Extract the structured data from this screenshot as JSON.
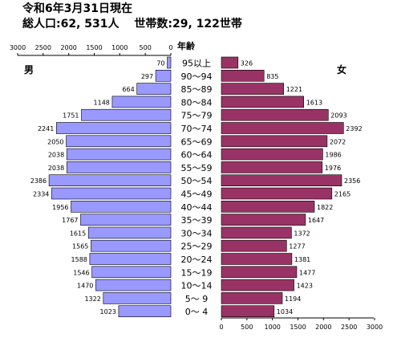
{
  "header": {
    "line1": "令和6年3月31日現在",
    "line2": "総人口:62, 531人　 世帯数:29, 122世帯"
  },
  "colors": {
    "male_bar": "#9999ff",
    "female_bar": "#993366",
    "bar_outline": "#000000"
  },
  "chart_data": {
    "type": "bar",
    "subtype": "population-pyramid",
    "categories": [
      "95以上",
      "90～94",
      "85～89",
      "80～84",
      "75～79",
      "70～74",
      "65～69",
      "60～64",
      "55～59",
      "50～54",
      "45～49",
      "40～44",
      "35～39",
      "30～34",
      "25～29",
      "20～24",
      "15～19",
      "10～14",
      "5～ 9",
      "0～ 4"
    ],
    "category_header": "年齢",
    "series": [
      {
        "name": "男",
        "values": [
          70,
          297,
          664,
          1148,
          1751,
          2241,
          2050,
          2038,
          2038,
          2386,
          2334,
          1956,
          1767,
          1615,
          1565,
          1588,
          1546,
          1470,
          1322,
          1023
        ]
      },
      {
        "name": "女",
        "values": [
          326,
          835,
          1221,
          1613,
          2093,
          2392,
          2072,
          1986,
          1976,
          2356,
          2165,
          1822,
          1647,
          1372,
          1277,
          1381,
          1477,
          1423,
          1194,
          1034
        ]
      }
    ],
    "male_axis_ticks": [
      "3000",
      "2500",
      "2000",
      "1500",
      "1000",
      "500",
      "0"
    ],
    "female_axis_ticks": [
      "0",
      "500",
      "1000",
      "1500",
      "2000",
      "2500",
      "3000"
    ],
    "xlim": [
      0,
      3000
    ],
    "grid": false,
    "legend": "top-left and top-right labels"
  }
}
